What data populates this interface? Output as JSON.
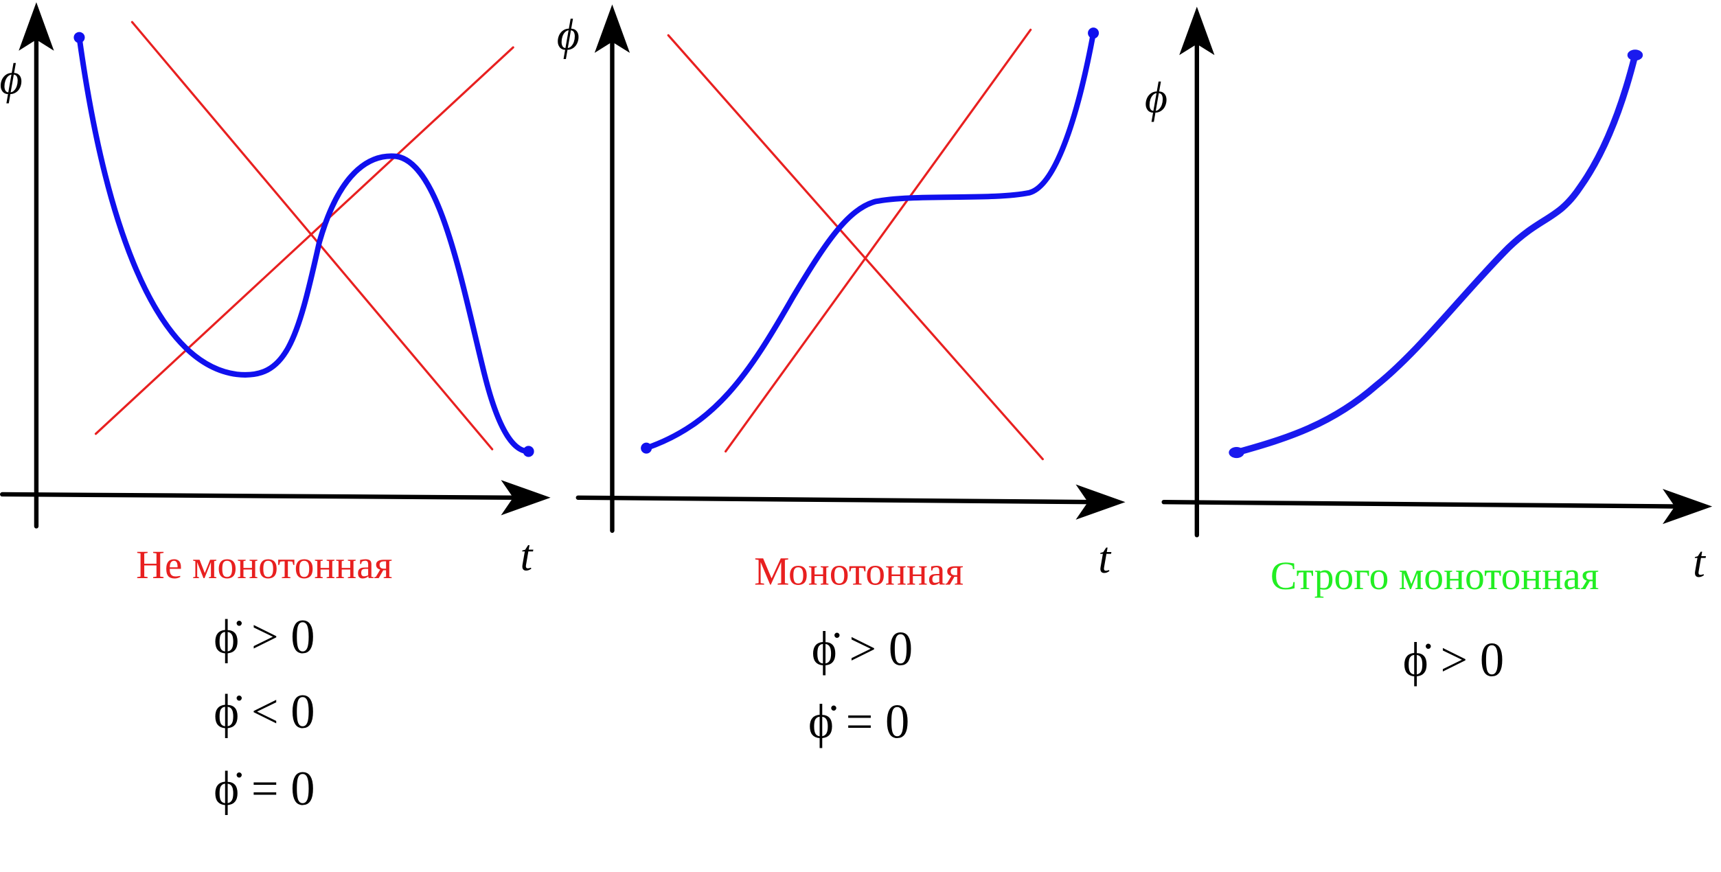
{
  "panels": [
    {
      "y_label": "ϕ",
      "x_label": "t",
      "title": "Не монотонная",
      "conditions": [
        "ϕ̇ > 0",
        "ϕ̇ < 0",
        "ϕ̇ = 0"
      ]
    },
    {
      "y_label": "ϕ",
      "x_label": "t",
      "title": "Монотонная",
      "conditions": [
        "ϕ̇ > 0",
        "ϕ̇ = 0"
      ]
    },
    {
      "y_label": "ϕ",
      "x_label": "t",
      "title": "Строго монотонная",
      "conditions": [
        "ϕ̇ > 0"
      ]
    }
  ]
}
